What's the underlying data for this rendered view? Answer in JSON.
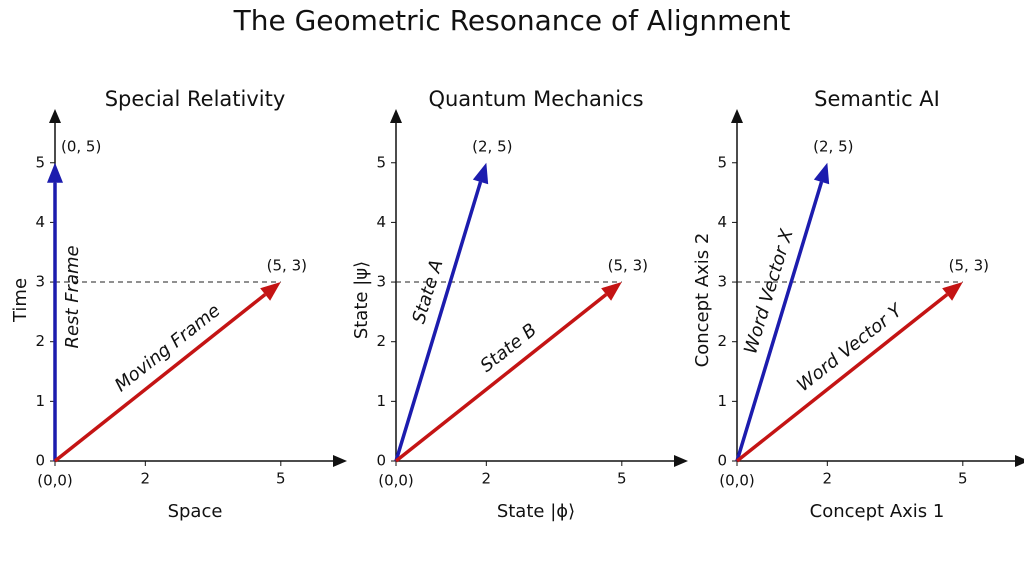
{
  "title": "The Geometric Resonance of Alignment",
  "chart_data": [
    {
      "type": "vector",
      "title": "Special Relativity",
      "xlabel": "Space",
      "ylabel": "Time",
      "xlim": [
        0,
        6.2
      ],
      "ylim": [
        0,
        5.7
      ],
      "xticks": [
        0,
        2,
        5
      ],
      "yticks": [
        0,
        1,
        2,
        3,
        4,
        5
      ],
      "origin_label": "(0,0)",
      "reference_y": 3,
      "vectors": [
        {
          "name": "Rest Frame",
          "color": "#1c1cae",
          "x": 0,
          "y": 5,
          "value_label": "(0, 5)"
        },
        {
          "name": "Moving Frame",
          "color": "#c41414",
          "x": 5,
          "y": 3,
          "value_label": "(5, 3)"
        }
      ]
    },
    {
      "type": "vector",
      "title": "Quantum Mechanics",
      "xlabel": "State |ϕ⟩",
      "ylabel": "State |ψ⟩",
      "xlim": [
        0,
        6.2
      ],
      "ylim": [
        0,
        5.7
      ],
      "xticks": [
        0,
        2,
        5
      ],
      "yticks": [
        0,
        1,
        2,
        3,
        4,
        5
      ],
      "origin_label": "(0,0)",
      "reference_y": 3,
      "vectors": [
        {
          "name": "State A",
          "color": "#1c1cae",
          "x": 2,
          "y": 5,
          "value_label": "(2, 5)"
        },
        {
          "name": "State B",
          "color": "#c41414",
          "x": 5,
          "y": 3,
          "value_label": "(5, 3)"
        }
      ]
    },
    {
      "type": "vector",
      "title": "Semantic AI",
      "xlabel": "Concept Axis 1",
      "ylabel": "Concept Axis 2",
      "xlim": [
        0,
        6.2
      ],
      "ylim": [
        0,
        5.7
      ],
      "xticks": [
        0,
        2,
        5
      ],
      "yticks": [
        0,
        1,
        2,
        3,
        4,
        5
      ],
      "origin_label": "(0,0)",
      "reference_y": 3,
      "vectors": [
        {
          "name": "Word Vector X",
          "color": "#1c1cae",
          "x": 2,
          "y": 5,
          "value_label": "(2, 5)"
        },
        {
          "name": "Word Vector Y",
          "color": "#c41414",
          "x": 5,
          "y": 3,
          "value_label": "(5, 3)"
        }
      ]
    }
  ]
}
